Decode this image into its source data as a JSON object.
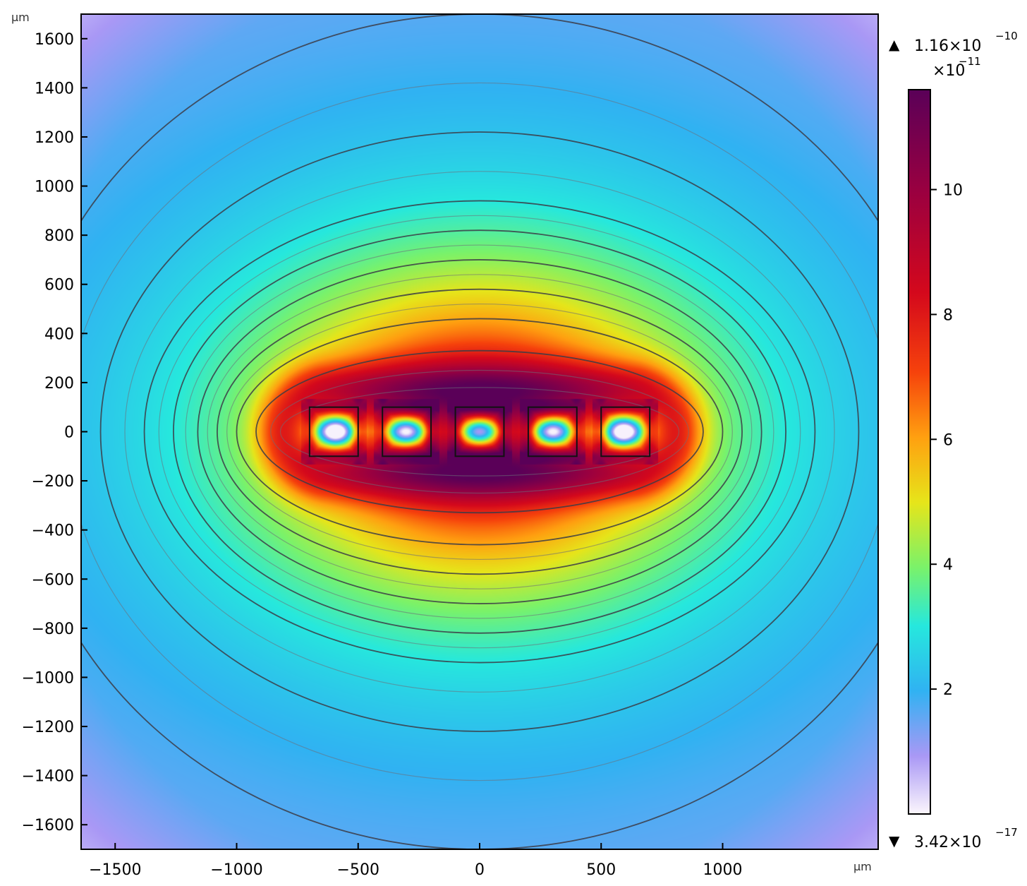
{
  "chart_data": {
    "type": "heatmap",
    "x_unit": "µm",
    "y_unit": "µm",
    "xlim": [
      -1640,
      1640
    ],
    "ylim": [
      -1700,
      1700
    ],
    "x_ticks": [
      -1500,
      -1000,
      -500,
      0,
      500,
      1000
    ],
    "x_tick_labels": [
      "−1500",
      "−1000",
      "−500",
      "0",
      "500",
      "1000"
    ],
    "y_ticks": [
      1600,
      1400,
      1200,
      1000,
      800,
      600,
      400,
      200,
      0,
      -200,
      -400,
      -600,
      -800,
      -1000,
      -1200,
      -1400,
      -1600
    ],
    "y_tick_labels": [
      "1600",
      "1400",
      "1200",
      "1000",
      "800",
      "600",
      "400",
      "200",
      "0",
      "−200",
      "−400",
      "−600",
      "−800",
      "−1000",
      "−1200",
      "−1400",
      "−1600"
    ],
    "field": {
      "description_values": "field magnitude in units of 1e-11",
      "min_value": 3.42e-17,
      "max_value": 1.16e-10,
      "sources_x": [
        -600,
        -300,
        0,
        300,
        600
      ],
      "source_half_width": 100,
      "source_half_height": 100
    },
    "contours_dark": [
      {
        "a": 920,
        "b": 330
      },
      {
        "a": 1000,
        "b": 460
      },
      {
        "a": 1080,
        "b": 580
      },
      {
        "a": 1160,
        "b": 700
      },
      {
        "a": 1260,
        "b": 820
      },
      {
        "a": 1380,
        "b": 940
      },
      {
        "a": 1560,
        "b": 1220
      },
      {
        "a": 1900,
        "b": 1700
      }
    ],
    "contours_light": [
      {
        "a": 820,
        "b": 180
      },
      {
        "a": 860,
        "b": 250
      },
      {
        "a": 1040,
        "b": 520
      },
      {
        "a": 1120,
        "b": 640
      },
      {
        "a": 1210,
        "b": 760
      },
      {
        "a": 1320,
        "b": 880
      },
      {
        "a": 1460,
        "b": 1060
      },
      {
        "a": 1700,
        "b": 1420
      }
    ],
    "colorbar": {
      "max_label_mantissa": "1.16×10",
      "max_label_exp": "−10",
      "scale_label_base": "×10",
      "scale_label_exp": "−11",
      "min_label_mantissa": "3.42×10",
      "min_label_exp": "−17",
      "range": [
        0,
        11.6
      ],
      "ticks": [
        10,
        8,
        6,
        4,
        2
      ],
      "tick_labels": [
        "10",
        "8",
        "6",
        "4",
        "2"
      ],
      "max_marker": "▲",
      "min_marker": "▼"
    }
  }
}
